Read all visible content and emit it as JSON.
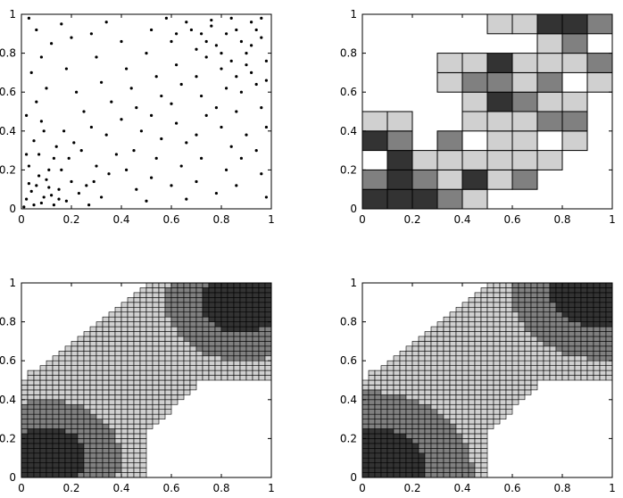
{
  "colors": {
    "light": "#d0d0d0",
    "mid": "#808080",
    "dark": "#333333",
    "points": "#000000",
    "frame": "#000000"
  },
  "chart_data": [
    {
      "type": "scatter",
      "xlim": [
        0,
        1
      ],
      "ylim": [
        0,
        1
      ],
      "xticks": [
        "0",
        "0.2",
        "0.4",
        "0.6",
        "0.8",
        "1"
      ],
      "yticks": [
        "0",
        "0.2",
        "0.4",
        "0.6",
        "0.8",
        "1"
      ],
      "series": [
        {
          "points": [
            [
              0.02,
              0.05
            ],
            [
              0.04,
              0.09
            ],
            [
              0.06,
              0.12
            ],
            [
              0.08,
              0.03
            ],
            [
              0.1,
              0.15
            ],
            [
              0.12,
              0.07
            ],
            [
              0.03,
              0.22
            ],
            [
              0.07,
              0.28
            ],
            [
              0.11,
              0.2
            ],
            [
              0.15,
              0.1
            ],
            [
              0.18,
              0.04
            ],
            [
              0.2,
              0.14
            ],
            [
              0.05,
              0.35
            ],
            [
              0.09,
              0.4
            ],
            [
              0.14,
              0.32
            ],
            [
              0.02,
              0.48
            ],
            [
              0.06,
              0.55
            ],
            [
              0.1,
              0.62
            ],
            [
              0.04,
              0.7
            ],
            [
              0.08,
              0.78
            ],
            [
              0.12,
              0.85
            ],
            [
              0.06,
              0.92
            ],
            [
              0.03,
              0.98
            ],
            [
              0.16,
              0.95
            ],
            [
              0.2,
              0.88
            ],
            [
              0.18,
              0.72
            ],
            [
              0.22,
              0.6
            ],
            [
              0.25,
              0.5
            ],
            [
              0.28,
              0.42
            ],
            [
              0.24,
              0.3
            ],
            [
              0.3,
              0.22
            ],
            [
              0.26,
              0.12
            ],
            [
              0.32,
              0.06
            ],
            [
              0.35,
              0.18
            ],
            [
              0.38,
              0.28
            ],
            [
              0.34,
              0.38
            ],
            [
              0.4,
              0.46
            ],
            [
              0.36,
              0.55
            ],
            [
              0.32,
              0.65
            ],
            [
              0.3,
              0.78
            ],
            [
              0.28,
              0.9
            ],
            [
              0.34,
              0.96
            ],
            [
              0.4,
              0.86
            ],
            [
              0.42,
              0.72
            ],
            [
              0.44,
              0.62
            ],
            [
              0.46,
              0.52
            ],
            [
              0.48,
              0.4
            ],
            [
              0.45,
              0.3
            ],
            [
              0.42,
              0.2
            ],
            [
              0.46,
              0.1
            ],
            [
              0.5,
              0.04
            ],
            [
              0.52,
              0.16
            ],
            [
              0.54,
              0.26
            ],
            [
              0.56,
              0.36
            ],
            [
              0.52,
              0.48
            ],
            [
              0.56,
              0.58
            ],
            [
              0.54,
              0.68
            ],
            [
              0.5,
              0.8
            ],
            [
              0.52,
              0.92
            ],
            [
              0.58,
              0.98
            ],
            [
              0.6,
              0.86
            ],
            [
              0.62,
              0.74
            ],
            [
              0.64,
              0.64
            ],
            [
              0.6,
              0.54
            ],
            [
              0.62,
              0.44
            ],
            [
              0.66,
              0.34
            ],
            [
              0.64,
              0.22
            ],
            [
              0.6,
              0.12
            ],
            [
              0.66,
              0.05
            ],
            [
              0.7,
              0.14
            ],
            [
              0.72,
              0.26
            ],
            [
              0.7,
              0.38
            ],
            [
              0.74,
              0.48
            ],
            [
              0.72,
              0.58
            ],
            [
              0.7,
              0.68
            ],
            [
              0.74,
              0.78
            ],
            [
              0.72,
              0.9
            ],
            [
              0.76,
              0.97
            ],
            [
              0.78,
              0.84
            ],
            [
              0.8,
              0.72
            ],
            [
              0.82,
              0.62
            ],
            [
              0.78,
              0.52
            ],
            [
              0.8,
              0.42
            ],
            [
              0.84,
              0.32
            ],
            [
              0.82,
              0.2
            ],
            [
              0.78,
              0.08
            ],
            [
              0.86,
              0.12
            ],
            [
              0.88,
              0.26
            ],
            [
              0.9,
              0.38
            ],
            [
              0.86,
              0.5
            ],
            [
              0.88,
              0.6
            ],
            [
              0.92,
              0.7
            ],
            [
              0.9,
              0.8
            ],
            [
              0.86,
              0.92
            ],
            [
              0.92,
              0.96
            ],
            [
              0.96,
              0.88
            ],
            [
              0.98,
              0.76
            ],
            [
              0.94,
              0.64
            ],
            [
              0.96,
              0.52
            ],
            [
              0.98,
              0.42
            ],
            [
              0.94,
              0.3
            ],
            [
              0.96,
              0.18
            ],
            [
              0.98,
              0.06
            ],
            [
              0.84,
              0.98
            ],
            [
              0.76,
              0.94
            ],
            [
              0.68,
              0.92
            ],
            [
              0.88,
              0.86
            ],
            [
              0.82,
              0.9
            ],
            [
              0.74,
              0.86
            ],
            [
              0.94,
              0.92
            ],
            [
              0.9,
              0.74
            ],
            [
              0.8,
              0.8
            ],
            [
              0.86,
              0.68
            ],
            [
              0.7,
              0.82
            ],
            [
              0.96,
              0.98
            ],
            [
              0.66,
              0.96
            ],
            [
              0.92,
              0.84
            ],
            [
              0.62,
              0.9
            ],
            [
              0.98,
              0.66
            ],
            [
              0.84,
              0.76
            ],
            [
              0.01,
              0.01
            ],
            [
              0.05,
              0.02
            ],
            [
              0.09,
              0.06
            ],
            [
              0.13,
              0.02
            ],
            [
              0.03,
              0.13
            ],
            [
              0.07,
              0.17
            ],
            [
              0.11,
              0.11
            ],
            [
              0.15,
              0.05
            ],
            [
              0.02,
              0.28
            ],
            [
              0.16,
              0.2
            ],
            [
              0.19,
              0.26
            ],
            [
              0.13,
              0.26
            ],
            [
              0.08,
              0.45
            ],
            [
              0.17,
              0.4
            ],
            [
              0.21,
              0.34
            ],
            [
              0.23,
              0.08
            ],
            [
              0.27,
              0.02
            ],
            [
              0.29,
              0.14
            ]
          ]
        }
      ]
    },
    {
      "type": "heatmap",
      "xlim": [
        0,
        1
      ],
      "ylim": [
        0,
        1
      ],
      "xticks": [
        "0",
        "0.2",
        "0.4",
        "0.6",
        "0.8",
        "1"
      ],
      "yticks": [
        "0",
        "0.2",
        "0.4",
        "0.6",
        "0.8",
        "1"
      ],
      "cell_size": 0.1,
      "levels": [
        "light",
        "mid",
        "dark"
      ],
      "cells": [
        [
          0.0,
          0.0,
          "dark"
        ],
        [
          0.1,
          0.0,
          "dark"
        ],
        [
          0.2,
          0.0,
          "dark"
        ],
        [
          0.3,
          0.0,
          "mid"
        ],
        [
          0.4,
          0.0,
          "light"
        ],
        [
          0.0,
          0.1,
          "mid"
        ],
        [
          0.1,
          0.1,
          "dark"
        ],
        [
          0.2,
          0.1,
          "mid"
        ],
        [
          0.3,
          0.1,
          "light"
        ],
        [
          0.4,
          0.1,
          "dark"
        ],
        [
          0.5,
          0.1,
          "light"
        ],
        [
          0.6,
          0.1,
          "mid"
        ],
        [
          0.1,
          0.2,
          "dark"
        ],
        [
          0.2,
          0.2,
          "light"
        ],
        [
          0.3,
          0.2,
          "light"
        ],
        [
          0.4,
          0.2,
          "light"
        ],
        [
          0.5,
          0.2,
          "light"
        ],
        [
          0.6,
          0.2,
          "light"
        ],
        [
          0.7,
          0.2,
          "light"
        ],
        [
          0.0,
          0.3,
          "dark"
        ],
        [
          0.1,
          0.3,
          "mid"
        ],
        [
          0.3,
          0.3,
          "mid"
        ],
        [
          0.5,
          0.3,
          "light"
        ],
        [
          0.6,
          0.3,
          "light"
        ],
        [
          0.8,
          0.3,
          "light"
        ],
        [
          0.0,
          0.4,
          "light"
        ],
        [
          0.1,
          0.4,
          "light"
        ],
        [
          0.4,
          0.4,
          "light"
        ],
        [
          0.5,
          0.4,
          "light"
        ],
        [
          0.6,
          0.4,
          "light"
        ],
        [
          0.7,
          0.4,
          "mid"
        ],
        [
          0.8,
          0.4,
          "mid"
        ],
        [
          0.4,
          0.5,
          "light"
        ],
        [
          0.5,
          0.5,
          "dark"
        ],
        [
          0.6,
          0.5,
          "mid"
        ],
        [
          0.7,
          0.5,
          "light"
        ],
        [
          0.8,
          0.5,
          "light"
        ],
        [
          0.3,
          0.6,
          "light"
        ],
        [
          0.4,
          0.6,
          "mid"
        ],
        [
          0.5,
          0.6,
          "mid"
        ],
        [
          0.6,
          0.6,
          "light"
        ],
        [
          0.7,
          0.6,
          "mid"
        ],
        [
          0.9,
          0.6,
          "light"
        ],
        [
          0.3,
          0.7,
          "light"
        ],
        [
          0.4,
          0.7,
          "light"
        ],
        [
          0.5,
          0.7,
          "dark"
        ],
        [
          0.6,
          0.7,
          "light"
        ],
        [
          0.7,
          0.7,
          "light"
        ],
        [
          0.8,
          0.7,
          "light"
        ],
        [
          0.9,
          0.7,
          "mid"
        ],
        [
          0.7,
          0.8,
          "light"
        ],
        [
          0.8,
          0.8,
          "mid"
        ],
        [
          0.5,
          0.9,
          "light"
        ],
        [
          0.6,
          0.9,
          "light"
        ],
        [
          0.7,
          0.9,
          "dark"
        ],
        [
          0.8,
          0.9,
          "dark"
        ],
        [
          0.9,
          0.9,
          "mid"
        ]
      ]
    },
    {
      "type": "heatmap",
      "xlim": [
        0,
        1
      ],
      "ylim": [
        0,
        1
      ],
      "xticks": [
        "0",
        "0.2",
        "0.4",
        "0.6",
        "0.8",
        "1"
      ],
      "yticks": [
        "0",
        "0.2",
        "0.4",
        "0.6",
        "0.8",
        "1"
      ],
      "grid_cells": 40,
      "domain": "L-shaped region: [0,0.5]x[0,0.5] ∪ [0.5,1]x[0.5,1] plus a staircase band joining them",
      "dark_lobes": [
        [
          0.1,
          0.1,
          0.16
        ],
        [
          0.88,
          0.9,
          0.16
        ]
      ],
      "mid_lobes": [
        [
          0.1,
          0.1,
          0.3
        ],
        [
          0.88,
          0.9,
          0.3
        ]
      ],
      "levels": [
        "light",
        "mid",
        "dark"
      ]
    },
    {
      "type": "heatmap",
      "xlim": [
        0,
        1
      ],
      "ylim": [
        0,
        1
      ],
      "xticks": [
        "0",
        "0.2",
        "0.4",
        "0.6",
        "0.8",
        "1"
      ],
      "yticks": [
        "0",
        "0.2",
        "0.4",
        "0.6",
        "0.8",
        "1"
      ],
      "grid_cells": 40,
      "domain": "L-shaped region: [0,0.5]x[0,0.5] ∪ [0.5,1]x[0.5,1] plus a staircase band joining them",
      "dark_lobes": [
        [
          0.02,
          0.02,
          0.24
        ],
        [
          0.95,
          0.97,
          0.2
        ]
      ],
      "mid_lobes": [
        [
          0.02,
          0.02,
          0.42
        ],
        [
          0.95,
          0.97,
          0.36
        ]
      ],
      "levels": [
        "light",
        "mid",
        "dark"
      ]
    }
  ]
}
